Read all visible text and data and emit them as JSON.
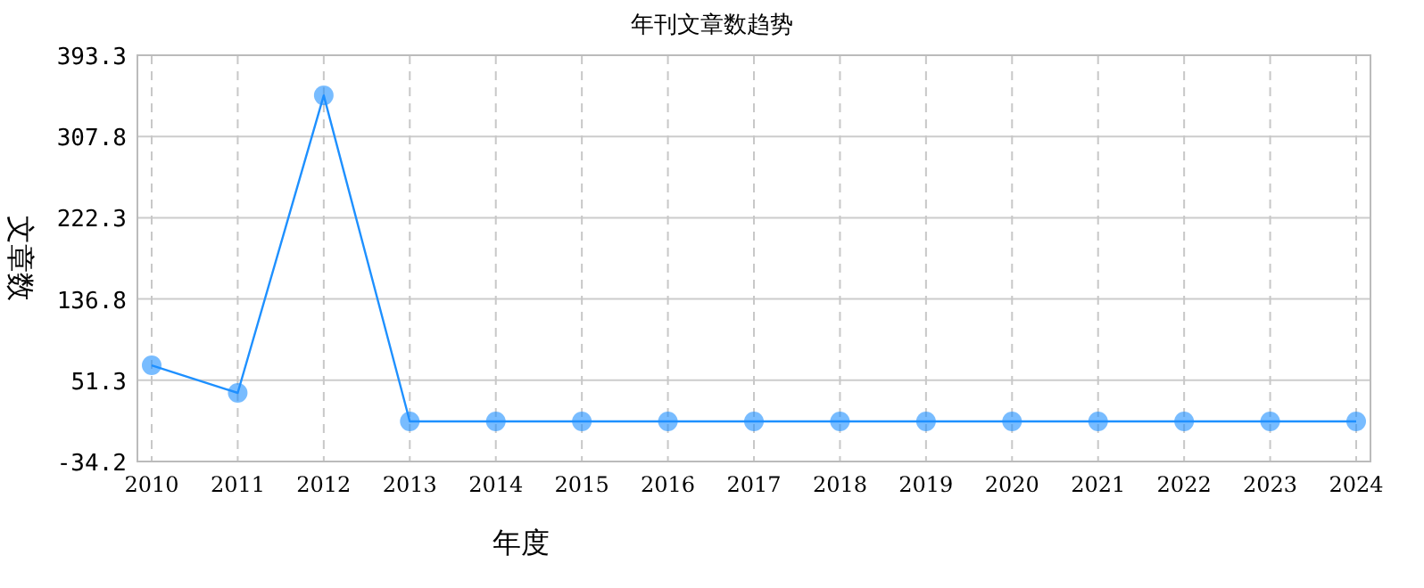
{
  "chart_data": {
    "type": "line",
    "title": "年刊文章数趋势",
    "xlabel": "年度",
    "ylabel": "文章数",
    "categories": [
      "2010",
      "2011",
      "2012",
      "2013",
      "2014",
      "2015",
      "2016",
      "2017",
      "2018",
      "2019",
      "2020",
      "2021",
      "2022",
      "2023",
      "2024"
    ],
    "series": [
      {
        "color": "#1e90ff",
        "values": [
          67,
          38,
          351,
          8,
          8,
          8,
          8,
          8,
          8,
          8,
          8,
          8,
          8,
          8,
          8
        ]
      }
    ],
    "ylim": [
      -34.2,
      393.3
    ],
    "yticks": [
      -34.2,
      51.3,
      136.8,
      222.3,
      307.8,
      393.3
    ],
    "grid": true,
    "marker": "circle",
    "line_style": "solid"
  }
}
